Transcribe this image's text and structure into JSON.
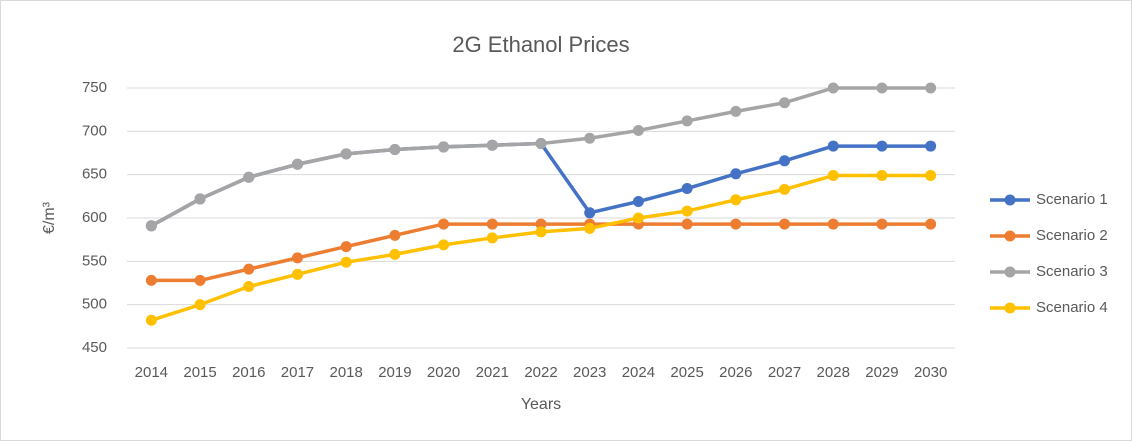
{
  "chart_data": {
    "type": "line",
    "title": "2G Ethanol Prices",
    "xlabel": "Years",
    "ylabel": "€/m³",
    "categories": [
      "2014",
      "2015",
      "2016",
      "2017",
      "2018",
      "2019",
      "2020",
      "2021",
      "2022",
      "2023",
      "2024",
      "2025",
      "2026",
      "2027",
      "2028",
      "2029",
      "2030"
    ],
    "series": [
      {
        "name": "Scenario 1",
        "color": "#4472c4",
        "values": [
          591,
          622,
          647,
          662,
          674,
          679,
          682,
          684,
          686,
          606,
          619,
          634,
          651,
          666,
          683,
          683,
          683
        ]
      },
      {
        "name": "Scenario 2",
        "color": "#ed7d31",
        "values": [
          528,
          528,
          541,
          554,
          567,
          580,
          593,
          593,
          593,
          593,
          593,
          593,
          593,
          593,
          593,
          593,
          593
        ]
      },
      {
        "name": "Scenario 3",
        "color": "#a5a5a5",
        "values": [
          591,
          622,
          647,
          662,
          674,
          679,
          682,
          684,
          686,
          692,
          701,
          712,
          723,
          733,
          750,
          750,
          750
        ]
      },
      {
        "name": "Scenario 4",
        "color": "#ffc000",
        "values": [
          482,
          500,
          521,
          535,
          549,
          558,
          569,
          577,
          584,
          588,
          600,
          608,
          621,
          633,
          649,
          649,
          649
        ]
      }
    ],
    "ylim": [
      450,
      750
    ],
    "yticks": [
      450,
      500,
      550,
      600,
      650,
      700,
      750
    ],
    "grid": true,
    "legend": "right"
  }
}
